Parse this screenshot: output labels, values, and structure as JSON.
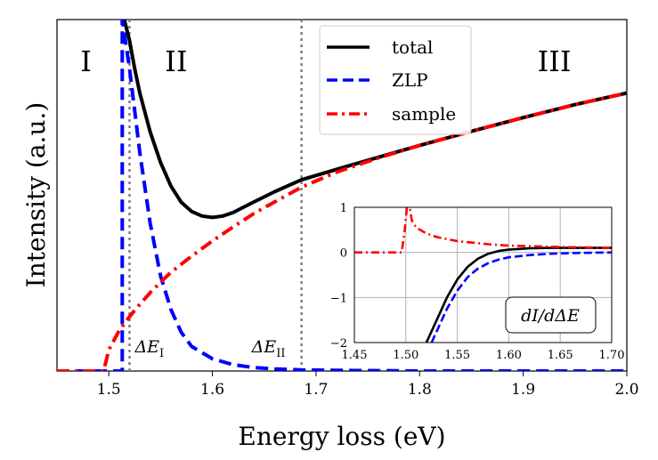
{
  "chart_data": [
    {
      "type": "line",
      "title": "",
      "xlabel": "Energy loss (eV)",
      "ylabel": "Intensity (a.u.)",
      "xlim": [
        1.45,
        2.0
      ],
      "ylim": [
        0,
        1
      ],
      "xticks": [
        "1.5",
        "1.6",
        "1.7",
        "1.8",
        "1.9",
        "2.0"
      ],
      "yticks_shown": false,
      "grid": false,
      "legend_position": "top-center",
      "legend": [
        {
          "label": "total",
          "color": "#000000",
          "style": "solid"
        },
        {
          "label": "ZLP",
          "color": "#0000ff",
          "style": "dashed"
        },
        {
          "label": "sample",
          "color": "#ff0000",
          "style": "dash-dot"
        }
      ],
      "region_labels": [
        "I",
        "II",
        "III"
      ],
      "region_label_x": [
        1.478,
        1.565,
        1.93
      ],
      "vertical_lines": [
        {
          "x": 1.52,
          "label": "ΔE",
          "sub": "I"
        },
        {
          "x": 1.686,
          "label": "ΔE",
          "sub": "II"
        }
      ],
      "series": [
        {
          "name": "total",
          "x": [
            1.515,
            1.52,
            1.525,
            1.53,
            1.54,
            1.55,
            1.56,
            1.57,
            1.58,
            1.59,
            1.6,
            1.61,
            1.62,
            1.63,
            1.64,
            1.66,
            1.686,
            1.72,
            1.76,
            1.8,
            1.85,
            1.9,
            1.95,
            2.0
          ],
          "y": [
            1.0,
            0.94,
            0.86,
            0.79,
            0.68,
            0.593,
            0.526,
            0.48,
            0.454,
            0.441,
            0.437,
            0.441,
            0.451,
            0.466,
            0.481,
            0.51,
            0.544,
            0.574,
            0.608,
            0.642,
            0.682,
            0.721,
            0.758,
            0.791
          ]
        },
        {
          "name": "ZLP",
          "x": [
            1.513,
            1.52,
            1.53,
            1.54,
            1.55,
            1.56,
            1.57,
            1.58,
            1.6,
            1.62,
            1.64,
            1.66,
            1.686,
            1.72,
            1.8,
            1.9,
            2.0
          ],
          "y": [
            1.0,
            0.86,
            0.62,
            0.42,
            0.27,
            0.175,
            0.11,
            0.07,
            0.035,
            0.018,
            0.01,
            0.006,
            0.003,
            0.002,
            0.0,
            0.0,
            0.0
          ],
          "points_before": [
            [
              1.45,
              0.0
            ],
            [
              1.513,
              0.0
            ]
          ]
        },
        {
          "name": "sample",
          "x": [
            1.45,
            1.495,
            1.5,
            1.51,
            1.52,
            1.53,
            1.54,
            1.55,
            1.56,
            1.58,
            1.6,
            1.62,
            1.64,
            1.66,
            1.686,
            1.72,
            1.76,
            1.8,
            1.85,
            1.9,
            1.95,
            2.0
          ],
          "y": [
            0.0,
            0.0,
            0.06,
            0.115,
            0.155,
            0.19,
            0.223,
            0.253,
            0.281,
            0.327,
            0.37,
            0.41,
            0.448,
            0.481,
            0.523,
            0.566,
            0.606,
            0.642,
            0.682,
            0.721,
            0.758,
            0.791
          ]
        }
      ]
    },
    {
      "type": "line",
      "title": "",
      "annotation": "dI/dΔE",
      "xlim": [
        1.45,
        1.7
      ],
      "ylim": [
        -2,
        1
      ],
      "xticks": [
        "1.45",
        "1.50",
        "1.55",
        "1.60",
        "1.65",
        "1.70"
      ],
      "yticks": [
        "−2",
        "−1",
        "0",
        "1"
      ],
      "grid": true,
      "series": [
        {
          "name": "total",
          "x": [
            1.52,
            1.53,
            1.54,
            1.55,
            1.56,
            1.57,
            1.58,
            1.59,
            1.6,
            1.62,
            1.64,
            1.67,
            1.7
          ],
          "y": [
            -2.0,
            -1.5,
            -1.0,
            -0.6,
            -0.32,
            -0.14,
            -0.03,
            0.03,
            0.06,
            0.09,
            0.1,
            0.1,
            0.1
          ]
        },
        {
          "name": "ZLP",
          "x": [
            1.525,
            1.53,
            1.54,
            1.55,
            1.56,
            1.57,
            1.58,
            1.59,
            1.6,
            1.62,
            1.64,
            1.67,
            1.7
          ],
          "y": [
            -2.0,
            -1.75,
            -1.25,
            -0.85,
            -0.55,
            -0.36,
            -0.24,
            -0.16,
            -0.11,
            -0.06,
            -0.03,
            -0.01,
            0.0
          ]
        },
        {
          "name": "sample",
          "x": [
            1.45,
            1.496,
            1.499,
            1.501,
            1.504,
            1.506,
            1.51,
            1.52,
            1.53,
            1.55,
            1.58,
            1.6,
            1.65,
            1.7
          ],
          "y": [
            0.0,
            0.0,
            0.5,
            1.0,
            0.95,
            0.7,
            0.55,
            0.42,
            0.34,
            0.25,
            0.18,
            0.15,
            0.12,
            0.1
          ]
        }
      ]
    }
  ]
}
